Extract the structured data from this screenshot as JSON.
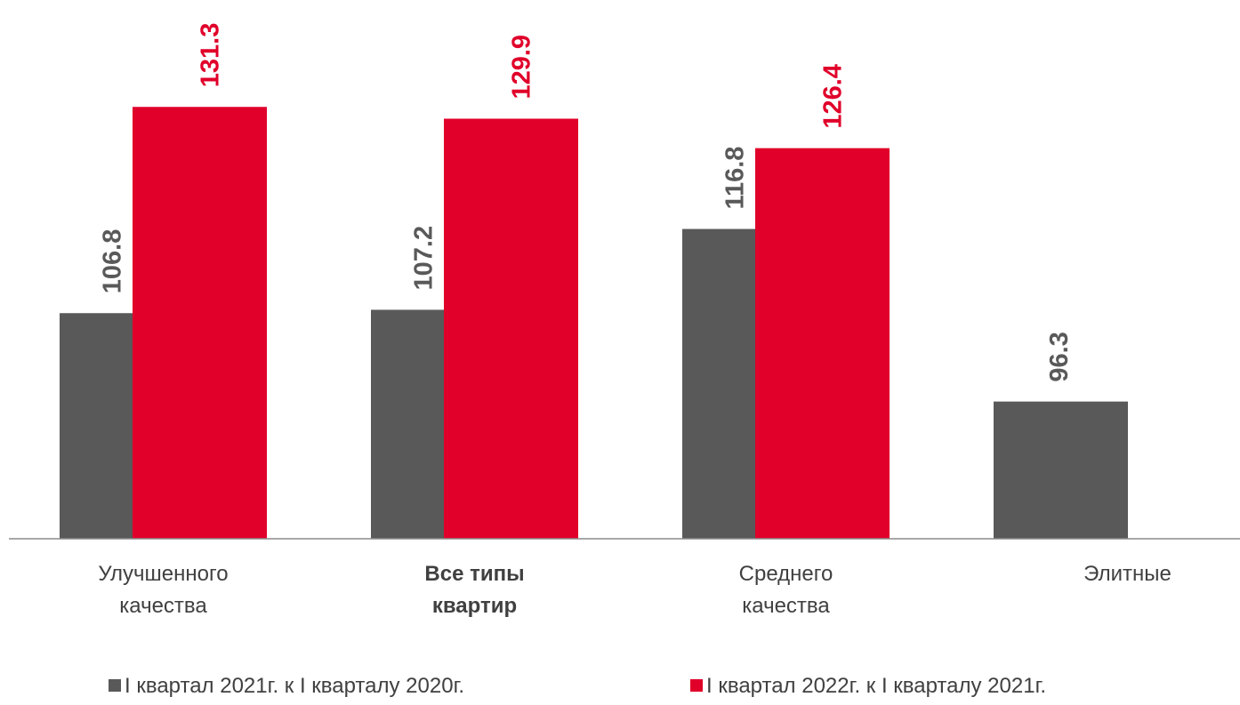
{
  "chart_data": {
    "type": "bar",
    "categories": [
      "Улучшенного качества",
      "Все типы квартир",
      "Среднего качества",
      "Элитные"
    ],
    "series": [
      {
        "name": "I квартал 2021г. к I кварталу 2020г.",
        "color": "#595959",
        "values": [
          106.8,
          107.2,
          116.8,
          96.3
        ]
      },
      {
        "name": "I квартал 2022г. к I кварталу 2021г.",
        "color": "#e0002a",
        "values": [
          131.3,
          129.9,
          126.4,
          null
        ]
      }
    ],
    "ylim": [
      80,
      144
    ]
  }
}
